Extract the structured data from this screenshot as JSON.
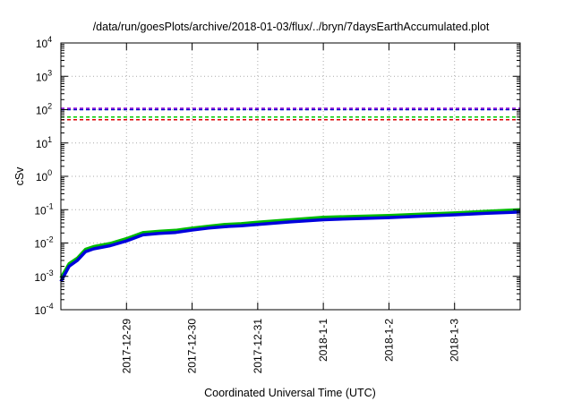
{
  "chart_data": {
    "type": "line",
    "title": "/data/run/goesPlots/archive/2018-01-03/flux/../bryn/7daysEarthAccumulated.plot",
    "xlabel": "Coordinated Universal Time (UTC)",
    "ylabel": "cSv",
    "yscale": "log",
    "ylim": [
      0.0001,
      10000
    ],
    "xlim": [
      "2017-12-28T00:00",
      "2018-01-04T00:00"
    ],
    "x_ticks": [
      "2017-12-29",
      "2017-12-30",
      "2017-12-31",
      "2018-1-1",
      "2018-1-2",
      "2018-1-3"
    ],
    "y_ticks": [
      {
        "base": "10",
        "exp": "-4"
      },
      {
        "base": "10",
        "exp": "-3"
      },
      {
        "base": "10",
        "exp": "-2"
      },
      {
        "base": "10",
        "exp": "-1"
      },
      {
        "base": "10",
        "exp": "0"
      },
      {
        "base": "10",
        "exp": "1"
      },
      {
        "base": "10",
        "exp": "2"
      },
      {
        "base": "10",
        "exp": "3"
      },
      {
        "base": "10",
        "exp": "4"
      }
    ],
    "grid": true,
    "thresholds": [
      {
        "value": 110,
        "color": "#9400d3"
      },
      {
        "value": 100,
        "color": "#0000cc"
      },
      {
        "value": 60,
        "color": "#00cc00"
      },
      {
        "value": 50,
        "color": "#dd0000"
      }
    ],
    "series": [
      {
        "color": "#00bb00",
        "x": [
          "2017-12-28T00:00",
          "2017-12-28T03:00",
          "2017-12-28T06:00",
          "2017-12-28T09:00",
          "2017-12-28T12:00",
          "2017-12-28T18:00",
          "2017-12-29T00:00",
          "2017-12-29T06:00",
          "2017-12-29T12:00",
          "2017-12-29T18:00",
          "2017-12-30T00:00",
          "2017-12-30T06:00",
          "2017-12-30T12:00",
          "2017-12-30T18:00",
          "2017-12-31T00:00",
          "2017-12-31T12:00",
          "2018-01-01T00:00",
          "2018-01-01T12:00",
          "2018-01-02T00:00",
          "2018-01-02T12:00",
          "2018-01-03T00:00",
          "2018-01-03T12:00",
          "2018-01-04T00:00"
        ],
        "y": [
          0.0009,
          0.0024,
          0.0035,
          0.0065,
          0.0078,
          0.0097,
          0.0135,
          0.0205,
          0.0225,
          0.024,
          0.028,
          0.032,
          0.036,
          0.038,
          0.042,
          0.05,
          0.059,
          0.063,
          0.067,
          0.073,
          0.08,
          0.09,
          0.1
        ]
      },
      {
        "color": "#0000dd",
        "x": [
          "2017-12-28T00:00",
          "2017-12-28T03:00",
          "2017-12-28T06:00",
          "2017-12-28T09:00",
          "2017-12-28T12:00",
          "2017-12-28T18:00",
          "2017-12-29T00:00",
          "2017-12-29T06:00",
          "2017-12-29T12:00",
          "2017-12-29T18:00",
          "2017-12-30T00:00",
          "2017-12-30T06:00",
          "2017-12-30T12:00",
          "2017-12-30T18:00",
          "2017-12-31T00:00",
          "2017-12-31T12:00",
          "2018-01-01T00:00",
          "2018-01-01T12:00",
          "2018-01-02T00:00",
          "2018-01-02T12:00",
          "2018-01-03T00:00",
          "2018-01-03T12:00",
          "2018-01-04T00:00"
        ],
        "y": [
          0.0007,
          0.002,
          0.003,
          0.0055,
          0.0067,
          0.0083,
          0.0115,
          0.0175,
          0.0195,
          0.0208,
          0.0245,
          0.028,
          0.031,
          0.033,
          0.036,
          0.043,
          0.05,
          0.054,
          0.058,
          0.064,
          0.07,
          0.078,
          0.085
        ]
      }
    ]
  }
}
